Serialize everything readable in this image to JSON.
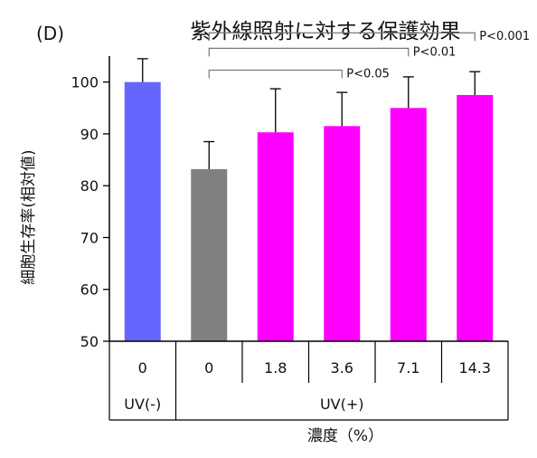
{
  "panel_label": "(D)",
  "chart_data": {
    "type": "bar",
    "title": "紫外線照射に対する保護効果",
    "xlabel": "濃度（%）",
    "ylabel": "細胞生存率(相対値)",
    "ylim": [
      50,
      105
    ],
    "yticks": [
      50,
      60,
      70,
      80,
      90,
      100
    ],
    "grid": false,
    "categories": [
      "0",
      "0",
      "1.8",
      "3.6",
      "7.1",
      "14.3"
    ],
    "values": [
      100,
      83.2,
      90.3,
      91.5,
      95.0,
      97.5
    ],
    "error_upper": [
      104.5,
      88.5,
      98.7,
      98.0,
      101.0,
      102.0
    ],
    "bar_colors": [
      "#6666ff",
      "#808080",
      "#ff00ff",
      "#ff00ff",
      "#ff00ff",
      "#ff00ff"
    ],
    "groups": [
      {
        "label": "UV(-)",
        "from": 0,
        "to": 0
      },
      {
        "label": "UV(+)",
        "from": 1,
        "to": 5
      }
    ],
    "significance": [
      {
        "from": 1,
        "to": 3,
        "label": "P<0.05"
      },
      {
        "from": 1,
        "to": 4,
        "label": "P<0.01"
      },
      {
        "from": 1,
        "to": 5,
        "label": "P<0.001"
      }
    ]
  }
}
